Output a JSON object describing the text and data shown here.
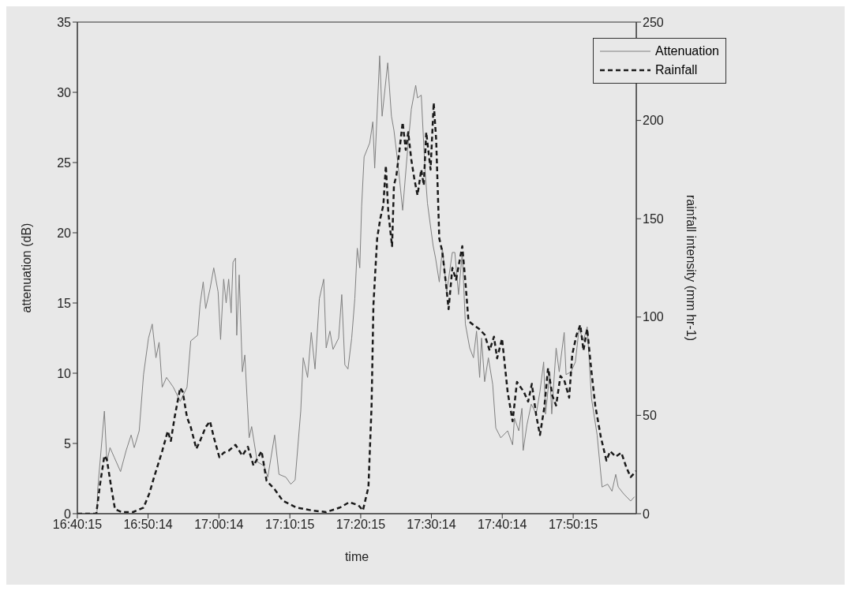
{
  "chart_data": {
    "type": "line",
    "xlabel": "time",
    "ylabel": "attenuation (dB)",
    "y2label": "rainfall intensity (mm hr-1)",
    "xlim": [
      16.6708,
      17.986
    ],
    "xticks": [
      {
        "value": 16.6708,
        "label": "16:40:15"
      },
      {
        "value": 16.8372,
        "label": "16:50:14"
      },
      {
        "value": 17.0039,
        "label": "17:00:14"
      },
      {
        "value": 17.1708,
        "label": "17:10:15"
      },
      {
        "value": 17.3375,
        "label": "17:20:15"
      },
      {
        "value": 17.5039,
        "label": "17:30:14"
      },
      {
        "value": 17.6706,
        "label": "17:40:14"
      },
      {
        "value": 17.8375,
        "label": "17:50:15"
      }
    ],
    "ylim": [
      0,
      35
    ],
    "yticks": [
      0,
      5,
      10,
      15,
      20,
      25,
      30,
      35
    ],
    "y2lim": [
      0,
      250
    ],
    "y2ticks": [
      0,
      50,
      100,
      150,
      200,
      250
    ],
    "grid": false,
    "legend": "top right",
    "series": [
      {
        "name": "Attenuation",
        "color": "#808080",
        "line_style": "solid",
        "x": [
          16.6708,
          16.7169,
          16.7183,
          16.7344,
          16.7402,
          16.7476,
          16.7578,
          16.7724,
          16.7856,
          16.7973,
          16.8046,
          16.8163,
          16.8265,
          16.8382,
          16.847,
          16.8557,
          16.8631,
          16.8704,
          16.8806,
          16.8967,
          16.9128,
          16.9288,
          16.9376,
          16.9537,
          16.9595,
          16.9669,
          16.9727,
          16.9829,
          16.9917,
          17.0019,
          17.0078,
          17.0151,
          17.0209,
          17.0268,
          17.0326,
          17.037,
          17.0429,
          17.0458,
          17.0516,
          17.059,
          17.0648,
          17.075,
          17.0809,
          17.094,
          17.1101,
          17.1189,
          17.135,
          17.1452,
          17.1613,
          17.173,
          17.1832,
          17.1964,
          17.2022,
          17.2125,
          17.2212,
          17.23,
          17.2402,
          17.2505,
          17.2563,
          17.2651,
          17.2724,
          17.2856,
          17.2929,
          17.3002,
          17.3075,
          17.3163,
          17.3236,
          17.3294,
          17.3353,
          17.3397,
          17.3455,
          17.3587,
          17.366,
          17.3704,
          17.3821,
          17.3879,
          17.4011,
          17.4098,
          17.4157,
          17.4259,
          17.4362,
          17.4464,
          17.4566,
          17.4669,
          17.4712,
          17.48,
          17.4888,
          17.4946,
          17.5078,
          17.5136,
          17.5224,
          17.5297,
          17.54,
          17.5531,
          17.559,
          17.5677,
          17.5765,
          17.5838,
          17.594,
          17.6028,
          17.6101,
          17.6174,
          17.6218,
          17.6291,
          17.6379,
          17.6481,
          17.6554,
          17.6671,
          17.6832,
          17.6949,
          17.6993,
          17.7095,
          17.7169,
          17.7198,
          17.7285,
          17.7388,
          17.7505,
          17.7593,
          17.768,
          17.7724,
          17.7826,
          17.787,
          17.7973,
          17.8046,
          17.8163,
          17.8207,
          17.8323,
          17.8426,
          17.8514,
          17.8616,
          17.8704,
          17.8806,
          17.8938,
          17.9054,
          17.9186,
          17.9288,
          17.9376,
          17.9435,
          17.9566,
          17.9727,
          17.9815
        ],
        "values": [
          0,
          0,
          1.6,
          7.3,
          3.7,
          4.7,
          4.0,
          3.0,
          4.5,
          5.6,
          4.7,
          5.9,
          9.9,
          12.5,
          13.5,
          11.1,
          12.2,
          9.0,
          9.7,
          9.0,
          8.0,
          9.0,
          12.3,
          12.7,
          14.9,
          16.5,
          14.6,
          16.0,
          17.5,
          15.8,
          12.4,
          16.7,
          15.0,
          16.7,
          14.3,
          17.9,
          18.2,
          12.7,
          17.0,
          10.1,
          11.3,
          5.4,
          6.2,
          3.7,
          3.4,
          2.6,
          5.6,
          2.8,
          2.6,
          2.1,
          2.4,
          7.3,
          11.1,
          9.7,
          12.9,
          10.3,
          15.3,
          16.7,
          11.8,
          13.0,
          11.7,
          12.5,
          15.6,
          10.6,
          10.3,
          12.5,
          15.3,
          18.9,
          17.5,
          21.9,
          25.4,
          26.4,
          27.9,
          24.6,
          32.6,
          28.3,
          32.1,
          28.3,
          27.3,
          24.7,
          21.6,
          25.4,
          28.8,
          30.5,
          29.6,
          29.8,
          24.5,
          22.1,
          19.1,
          18.2,
          16.5,
          18.9,
          15.8,
          18.6,
          18.6,
          15.6,
          18.6,
          13.5,
          11.8,
          11.1,
          13.0,
          9.7,
          12.5,
          9.4,
          11.1,
          9.2,
          6.1,
          5.4,
          5.9,
          4.9,
          6.8,
          5.9,
          7.5,
          4.5,
          6.3,
          7.8,
          7.1,
          8.7,
          10.8,
          7.1,
          10.1,
          7.1,
          11.8,
          10.1,
          12.9,
          9.9,
          10.1,
          10.8,
          13.2,
          12.3,
          13.3,
          8.2,
          5.6,
          1.9,
          2.1,
          1.6,
          2.8,
          1.9,
          1.4,
          0.9,
          1.2
        ]
      },
      {
        "name": "Rainfall",
        "color": "#1a1a1a",
        "line_style": "dashed",
        "axis": "y2",
        "x": [
          16.6708,
          16.7154,
          16.7242,
          16.7344,
          16.7402,
          16.7505,
          16.7593,
          16.7753,
          16.8016,
          16.8265,
          16.8397,
          16.8514,
          16.8704,
          16.8835,
          16.8908,
          16.8996,
          16.9128,
          16.9186,
          16.9288,
          16.9376,
          16.9508,
          16.9595,
          16.9727,
          16.9829,
          16.9917,
          17.0049,
          17.0151,
          17.0268,
          17.0429,
          17.059,
          17.0721,
          17.0853,
          17.1043,
          17.116,
          17.135,
          17.154,
          17.1862,
          17.2242,
          17.2563,
          17.2885,
          17.3104,
          17.3323,
          17.3426,
          17.3557,
          17.3631,
          17.3674,
          17.3762,
          17.3835,
          17.3908,
          17.3967,
          17.4025,
          17.4113,
          17.4157,
          17.4215,
          17.4288,
          17.4362,
          17.4435,
          17.4493,
          17.4566,
          17.4639,
          17.4712,
          17.48,
          17.4859,
          17.4917,
          17.5019,
          17.5093,
          17.5151,
          17.5224,
          17.5297,
          17.5385,
          17.5443,
          17.5531,
          17.5619,
          17.5765,
          17.5838,
          17.5911,
          17.6028,
          17.616,
          17.6291,
          17.6408,
          17.6511,
          17.6584,
          17.6701,
          17.6832,
          17.6949,
          17.7052,
          17.7212,
          17.7315,
          17.7402,
          17.7505,
          17.7593,
          17.7695,
          17.7783,
          17.7885,
          17.7973,
          17.8075,
          17.8163,
          17.828,
          17.8353,
          17.8455,
          17.8543,
          17.8616,
          17.8704,
          17.8806,
          17.8894,
          17.9025,
          17.9157,
          17.9245,
          17.9376,
          17.9508,
          17.9625,
          17.9727,
          17.9859
        ],
        "values": [
          0,
          0,
          15,
          29.5,
          27.5,
          13.5,
          2.3,
          0.8,
          0.8,
          3.1,
          10,
          18.6,
          31.8,
          42,
          37,
          49,
          64,
          62,
          49,
          44,
          33,
          37,
          44,
          47,
          39,
          28.7,
          31,
          32,
          35,
          29.5,
          34,
          24.4,
          31.8,
          16.7,
          12.4,
          6.6,
          3.1,
          1.6,
          0.8,
          3.1,
          5.8,
          4.3,
          1.6,
          13.5,
          55,
          106,
          140,
          150,
          157,
          177,
          153,
          136,
          167,
          172,
          185,
          199,
          185,
          194,
          180,
          170,
          162,
          175,
          167,
          194,
          175,
          209,
          190,
          140,
          133,
          116,
          104,
          125,
          119,
          136,
          118,
          98,
          96,
          94,
          91,
          83,
          90,
          79,
          89,
          62,
          47,
          67,
          62,
          57,
          66,
          50,
          40,
          54,
          74,
          60,
          55,
          70,
          68,
          59,
          81,
          91,
          96,
          83,
          94,
          72,
          55,
          39,
          27,
          31.8,
          29,
          31,
          23.6,
          18.6,
          21.7
        ]
      }
    ]
  }
}
